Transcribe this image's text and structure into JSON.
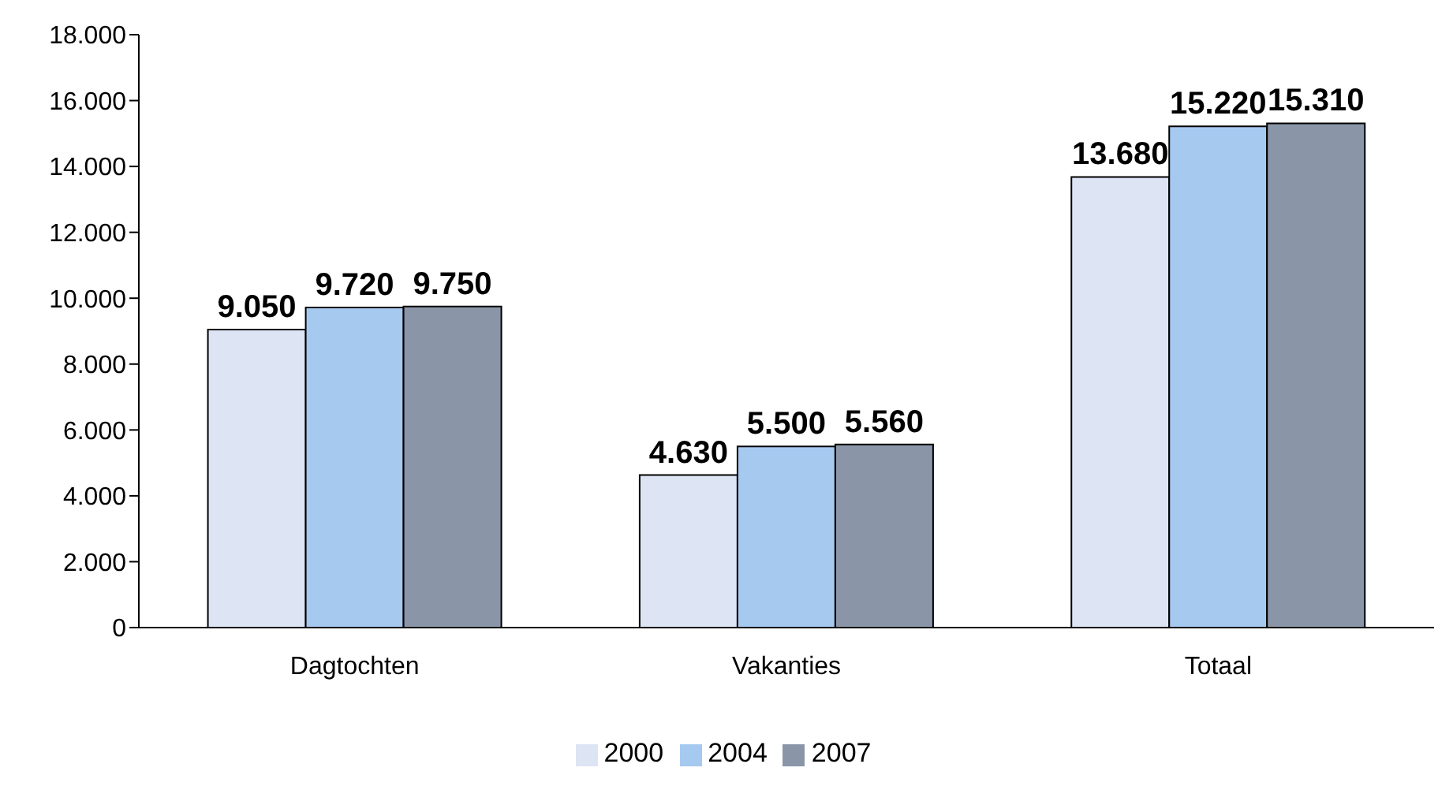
{
  "chart_data": {
    "type": "bar",
    "categories": [
      "Dagtochten",
      "Vakanties",
      "Totaal"
    ],
    "series": [
      {
        "name": "2000",
        "color": "#dde5f4",
        "values": [
          9050,
          4630,
          13680
        ],
        "value_labels": [
          "9.050",
          "4.630",
          "13.680"
        ]
      },
      {
        "name": "2004",
        "color": "#a6c9f0",
        "values": [
          9720,
          5500,
          15220
        ],
        "value_labels": [
          "9.720",
          "5.500",
          "15.220"
        ]
      },
      {
        "name": "2007",
        "color": "#8a96a8",
        "values": [
          9750,
          5560,
          15310
        ],
        "value_labels": [
          "9.750",
          "5.560",
          "15.310"
        ]
      }
    ],
    "ylim": [
      0,
      18000
    ],
    "yticks": [
      0,
      {
        "value": 2000,
        "label": "2.000"
      },
      {
        "value": 4000,
        "label": "4.000"
      },
      {
        "value": 6000,
        "label": "6.000"
      },
      {
        "value": 8000,
        "label": "8.000"
      },
      {
        "value": 10000,
        "label": "10.000"
      },
      {
        "value": 12000,
        "label": "12.000"
      },
      {
        "value": 14000,
        "label": "14.000"
      },
      {
        "value": 16000,
        "label": "16.000"
      },
      {
        "value": 18000,
        "label": "18.000"
      }
    ],
    "grid": false,
    "legend": "bottom"
  }
}
